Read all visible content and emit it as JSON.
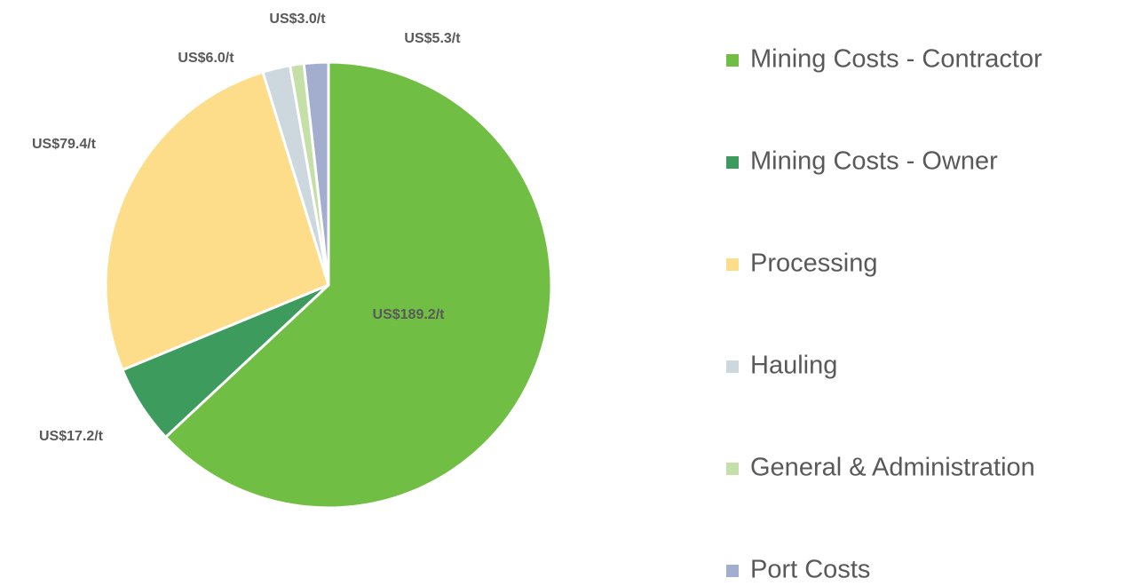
{
  "chart_data": {
    "type": "pie",
    "categories": [
      "Mining Costs - Contractor",
      "Mining Costs - Owner",
      "Processing",
      "Hauling",
      "General & Administration",
      "Port Costs"
    ],
    "values": [
      189.2,
      17.2,
      79.4,
      6.0,
      3.0,
      5.3
    ],
    "value_labels": [
      "US$189.2/t",
      "US$17.2/t",
      "US$79.4/t",
      "US$6.0/t",
      "US$3.0/t",
      "US$5.3/t"
    ],
    "colors": [
      "#70bf44",
      "#3d9b5e",
      "#fedd8a",
      "#cdd8de",
      "#c5dfa8",
      "#a3aece"
    ],
    "legend": "right"
  }
}
